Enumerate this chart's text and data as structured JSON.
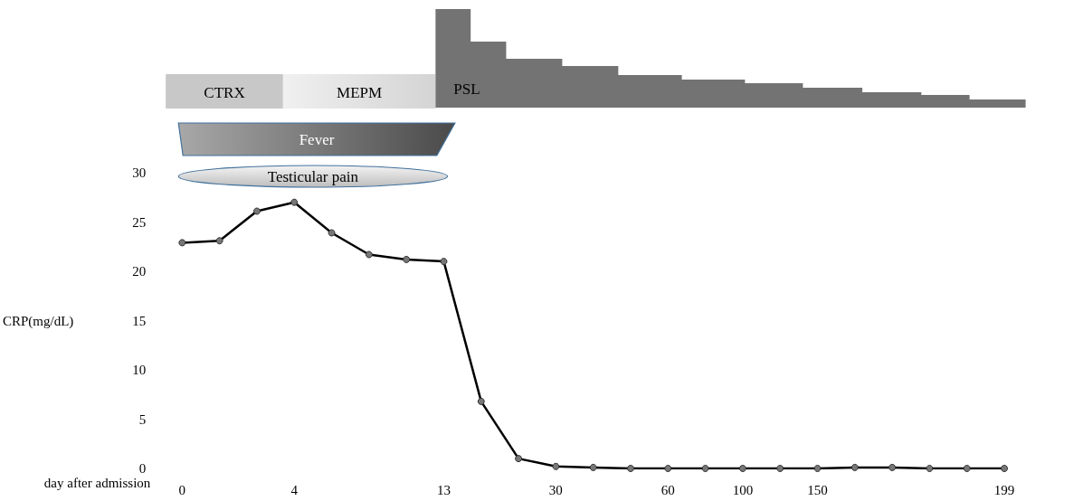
{
  "chart_data": {
    "type": "line",
    "xlabel": "day after admission",
    "ylabel": "CRP(mg/dL)",
    "annotations": [
      "CTRX",
      "MEPM",
      "PSL",
      "Fever",
      "Testicular pain"
    ],
    "categories": [
      "0",
      null,
      null,
      "4",
      null,
      null,
      null,
      "13",
      null,
      null,
      "30",
      null,
      null,
      "60",
      null,
      "100",
      null,
      "150",
      null,
      null,
      null,
      null,
      "199"
    ],
    "series": [
      {
        "color": "#000000",
        "values": [
          22.9,
          23.1,
          26.1,
          27.0,
          23.9,
          21.7,
          21.2,
          21.0,
          6.8,
          1.0,
          0.2,
          0.1,
          0,
          0,
          0,
          0,
          0,
          0,
          0.1,
          0.1,
          0,
          0,
          0
        ]
      }
    ],
    "ylim": [
      0,
      30
    ],
    "yticks": [
      0,
      5,
      10,
      15,
      20,
      25,
      30
    ],
    "grid": false,
    "marker": "circle",
    "line_style": "solid"
  }
}
